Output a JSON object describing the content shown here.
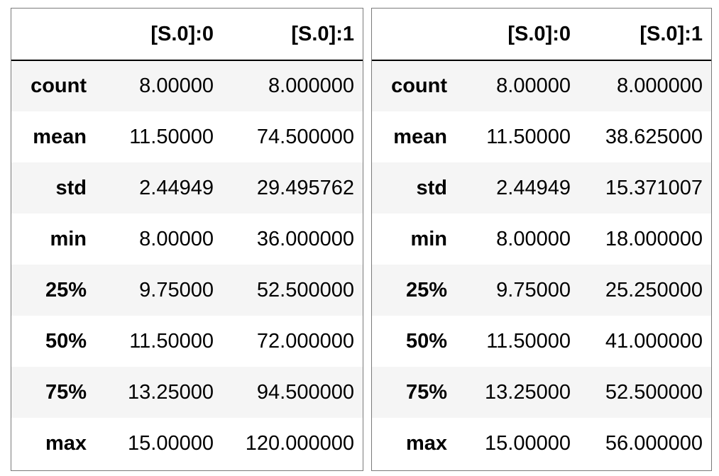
{
  "left_table": {
    "columns": [
      "[S.0]:0",
      "[S.0]:1"
    ],
    "rows": [
      {
        "label": "count",
        "v0": "8.00000",
        "v1": "8.000000"
      },
      {
        "label": "mean",
        "v0": "11.50000",
        "v1": "74.500000"
      },
      {
        "label": "std",
        "v0": "2.44949",
        "v1": "29.495762"
      },
      {
        "label": "min",
        "v0": "8.00000",
        "v1": "36.000000"
      },
      {
        "label": "25%",
        "v0": "9.75000",
        "v1": "52.500000"
      },
      {
        "label": "50%",
        "v0": "11.50000",
        "v1": "72.000000"
      },
      {
        "label": "75%",
        "v0": "13.25000",
        "v1": "94.500000"
      },
      {
        "label": "max",
        "v0": "15.00000",
        "v1": "120.000000"
      }
    ]
  },
  "right_table": {
    "columns": [
      "[S.0]:0",
      "[S.0]:1"
    ],
    "rows": [
      {
        "label": "count",
        "v0": "8.00000",
        "v1": "8.000000"
      },
      {
        "label": "mean",
        "v0": "11.50000",
        "v1": "38.625000"
      },
      {
        "label": "std",
        "v0": "2.44949",
        "v1": "15.371007"
      },
      {
        "label": "min",
        "v0": "8.00000",
        "v1": "18.000000"
      },
      {
        "label": "25%",
        "v0": "9.75000",
        "v1": "25.250000"
      },
      {
        "label": "50%",
        "v0": "11.50000",
        "v1": "41.000000"
      },
      {
        "label": "75%",
        "v0": "13.25000",
        "v1": "52.500000"
      },
      {
        "label": "max",
        "v0": "15.00000",
        "v1": "56.000000"
      }
    ]
  }
}
